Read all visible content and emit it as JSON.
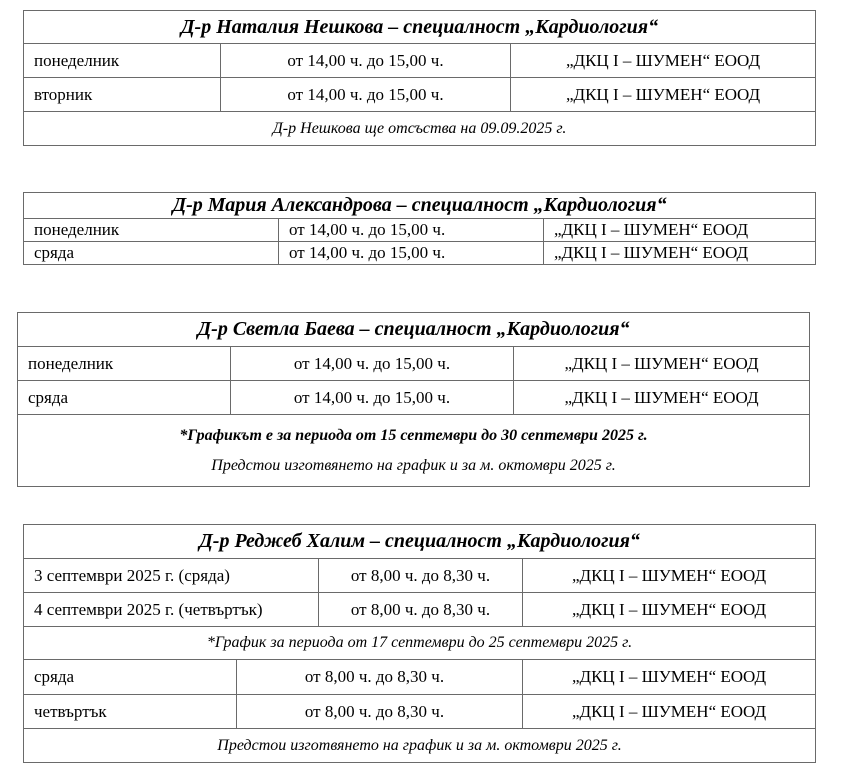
{
  "tables": [
    {
      "title": "Д-р Наталия Нешкова – специалност „Кардиология“",
      "rows": [
        {
          "day": "понеделник",
          "time": "от 14,00 ч. до 15,00 ч.",
          "place": "„ДКЦ I – ШУМЕН“ ЕООД"
        },
        {
          "day": "вторник",
          "time": "от 14,00 ч. до 15,00 ч.",
          "place": "„ДКЦ I – ШУМЕН“ ЕООД"
        }
      ],
      "note": "Д-р Нешкова ще отсъства на 09.09.2025 г."
    },
    {
      "title": "Д-р Мария Александрова – специалност „Кардиология“",
      "rows": [
        {
          "day": "понеделник",
          "time": "от 14,00 ч. до 15,00 ч.",
          "place": "„ДКЦ I – ШУМЕН“ ЕООД"
        },
        {
          "day": "сряда",
          "time": "от 14,00 ч. до 15,00 ч.",
          "place": "„ДКЦ I – ШУМЕН“ ЕООД"
        }
      ]
    },
    {
      "title": "Д-р Светла Баева – специалност „Кардиология“",
      "rows": [
        {
          "day": "понеделник",
          "time": "от 14,00 ч. до 15,00 ч.",
          "place": "„ДКЦ I – ШУМЕН“ ЕООД"
        },
        {
          "day": "сряда",
          "time": "от 14,00 ч. до 15,00 ч.",
          "place": "„ДКЦ I – ШУМЕН“ ЕООД"
        }
      ],
      "note_bold": "*Графикът е за периода от 15 септември до 30 септември 2025 г.",
      "note": "Предстои изготвянето на график и за м. октомври 2025 г."
    },
    {
      "title": "Д-р Реджеб Халим – специалност „Кардиология“",
      "rows": [
        {
          "day": "3 септември 2025 г. (сряда)",
          "time": "от 8,00 ч. до 8,30 ч.",
          "place": "„ДКЦ I – ШУМЕН“ ЕООД"
        },
        {
          "day": "4 септември 2025 г. (четвъртък)",
          "time": "от 8,00 ч. до 8,30 ч.",
          "place": "„ДКЦ I – ШУМЕН“ ЕООД"
        }
      ],
      "period_note": "*График за  периода от 17 септември до 25 септември 2025 г.",
      "rows2": [
        {
          "day": "сряда",
          "time": "от 8,00 ч. до 8,30 ч.",
          "place": "„ДКЦ I – ШУМЕН“ ЕООД"
        },
        {
          "day": "четвъртък",
          "time": "от 8,00 ч. до 8,30 ч.",
          "place": "„ДКЦ I – ШУМЕН“ ЕООД"
        }
      ],
      "note": "Предстои изготвянето на график и за м. октомври 2025 г."
    }
  ]
}
